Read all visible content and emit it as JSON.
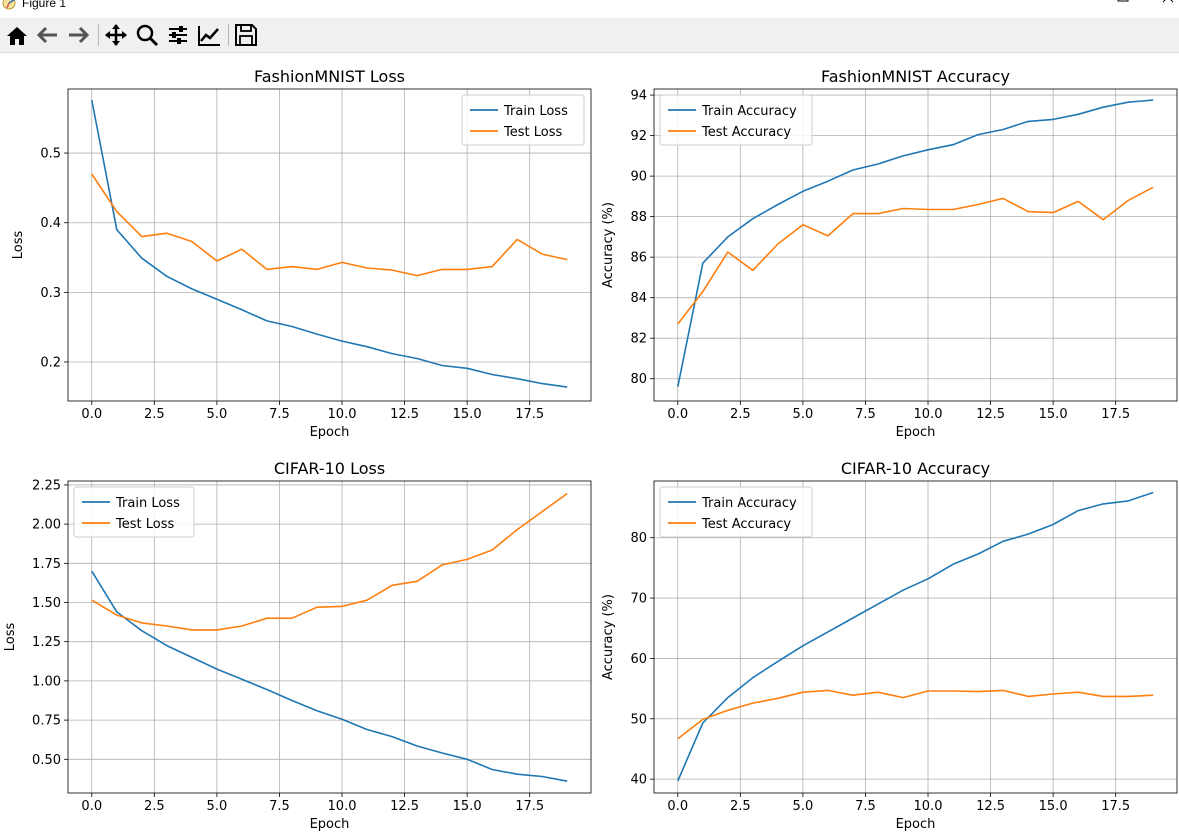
{
  "window": {
    "title": "Figure 1",
    "icons": [
      "matplotlib-icon",
      "minimize-icon",
      "maximize-icon",
      "close-icon"
    ]
  },
  "toolbar": {
    "buttons": [
      "home-icon",
      "back-arrow-icon",
      "forward-arrow-icon",
      "pan-move-icon",
      "zoom-magnifier-icon",
      "subplots-configure-icon",
      "edit-axes-icon",
      "save-floppy-icon"
    ]
  },
  "colors": {
    "train": "#1f77b4",
    "test": "#ff7f0e",
    "grid": "#b0b0b0"
  },
  "chart_data": [
    {
      "type": "line",
      "title": "FashionMNIST Loss",
      "xlabel": "Epoch",
      "ylabel": "Loss",
      "xlim": [
        -0.95,
        19.95
      ],
      "ylim": [
        0.144,
        0.592
      ],
      "xticks": [
        0,
        2.5,
        5,
        7.5,
        10,
        12.5,
        15,
        17.5
      ],
      "xtick_labels": [
        "0.0",
        "2.5",
        "5.0",
        "7.5",
        "10.0",
        "12.5",
        "15.0",
        "17.5"
      ],
      "yticks": [
        0.2,
        0.3,
        0.4,
        0.5
      ],
      "ytick_labels": [
        "0.2",
        "0.3",
        "0.4",
        "0.5"
      ],
      "grid": true,
      "legend": "upper right",
      "x": [
        0,
        1,
        2,
        3,
        4,
        5,
        6,
        7,
        8,
        9,
        10,
        11,
        12,
        13,
        14,
        15,
        16,
        17,
        18,
        19
      ],
      "series": [
        {
          "name": "Train Loss",
          "color": "#1f77b4",
          "values": [
            0.576,
            0.39,
            0.349,
            0.323,
            0.305,
            0.29,
            0.275,
            0.259,
            0.251,
            0.24,
            0.23,
            0.222,
            0.212,
            0.205,
            0.195,
            0.191,
            0.182,
            0.176,
            0.169,
            0.164
          ]
        },
        {
          "name": "Test Loss",
          "color": "#ff7f0e",
          "values": [
            0.47,
            0.416,
            0.38,
            0.385,
            0.373,
            0.345,
            0.362,
            0.333,
            0.337,
            0.333,
            0.343,
            0.335,
            0.332,
            0.324,
            0.333,
            0.333,
            0.337,
            0.376,
            0.355,
            0.347
          ]
        }
      ]
    },
    {
      "type": "line",
      "title": "FashionMNIST Accuracy",
      "xlabel": "Epoch",
      "ylabel": "Accuracy (%)",
      "xlim": [
        -0.95,
        19.95
      ],
      "ylim": [
        78.9,
        94.3
      ],
      "xticks": [
        0,
        2.5,
        5,
        7.5,
        10,
        12.5,
        15,
        17.5
      ],
      "xtick_labels": [
        "0.0",
        "2.5",
        "5.0",
        "7.5",
        "10.0",
        "12.5",
        "15.0",
        "17.5"
      ],
      "yticks": [
        80,
        82,
        84,
        86,
        88,
        90,
        92,
        94
      ],
      "ytick_labels": [
        "80",
        "82",
        "84",
        "86",
        "88",
        "90",
        "92",
        "94"
      ],
      "grid": true,
      "legend": "upper left",
      "x": [
        0,
        1,
        2,
        3,
        4,
        5,
        6,
        7,
        8,
        9,
        10,
        11,
        12,
        13,
        14,
        15,
        16,
        17,
        18,
        19
      ],
      "series": [
        {
          "name": "Train Accuracy",
          "color": "#1f77b4",
          "values": [
            79.6,
            85.7,
            87.0,
            87.9,
            88.6,
            89.25,
            89.75,
            90.3,
            90.6,
            91.0,
            91.3,
            91.55,
            92.05,
            92.3,
            92.7,
            92.8,
            93.05,
            93.4,
            93.65,
            93.75
          ]
        },
        {
          "name": "Test Accuracy",
          "color": "#ff7f0e",
          "values": [
            82.7,
            84.3,
            86.25,
            85.35,
            86.65,
            87.6,
            87.05,
            88.15,
            88.15,
            88.4,
            88.35,
            88.35,
            88.6,
            88.9,
            88.25,
            88.2,
            88.75,
            87.85,
            88.8,
            89.45
          ]
        }
      ]
    },
    {
      "type": "line",
      "title": "CIFAR-10 Loss",
      "xlabel": "Epoch",
      "ylabel": "Loss",
      "xlim": [
        -0.95,
        19.95
      ],
      "ylim": [
        0.285,
        2.275
      ],
      "xticks": [
        0,
        2.5,
        5,
        7.5,
        10,
        12.5,
        15,
        17.5
      ],
      "xtick_labels": [
        "0.0",
        "2.5",
        "5.0",
        "7.5",
        "10.0",
        "12.5",
        "15.0",
        "17.5"
      ],
      "yticks": [
        0.5,
        0.75,
        1.0,
        1.25,
        1.5,
        1.75,
        2.0,
        2.25
      ],
      "ytick_labels": [
        "0.50",
        "0.75",
        "1.00",
        "1.25",
        "1.50",
        "1.75",
        "2.00",
        "2.25"
      ],
      "grid": true,
      "legend": "upper left",
      "x": [
        0,
        1,
        2,
        3,
        4,
        5,
        6,
        7,
        8,
        9,
        10,
        11,
        12,
        13,
        14,
        15,
        16,
        17,
        18,
        19
      ],
      "series": [
        {
          "name": "Train Loss",
          "color": "#1f77b4",
          "values": [
            1.7,
            1.44,
            1.32,
            1.225,
            1.15,
            1.075,
            1.01,
            0.945,
            0.875,
            0.81,
            0.755,
            0.69,
            0.645,
            0.585,
            0.54,
            0.5,
            0.435,
            0.405,
            0.39,
            0.36
          ]
        },
        {
          "name": "Test Loss",
          "color": "#ff7f0e",
          "values": [
            1.515,
            1.42,
            1.37,
            1.35,
            1.325,
            1.325,
            1.35,
            1.4,
            1.4,
            1.47,
            1.475,
            1.515,
            1.61,
            1.635,
            1.74,
            1.775,
            1.835,
            1.965,
            2.08,
            2.195
          ]
        }
      ]
    },
    {
      "type": "line",
      "title": "CIFAR-10 Accuracy",
      "xlabel": "Epoch",
      "ylabel": "Accuracy (%)",
      "xlim": [
        -0.95,
        19.95
      ],
      "ylim": [
        37.7,
        89.4
      ],
      "xticks": [
        0,
        2.5,
        5,
        7.5,
        10,
        12.5,
        15,
        17.5
      ],
      "xtick_labels": [
        "0.0",
        "2.5",
        "5.0",
        "7.5",
        "10.0",
        "12.5",
        "15.0",
        "17.5"
      ],
      "yticks": [
        40,
        50,
        60,
        70,
        80
      ],
      "ytick_labels": [
        "40",
        "50",
        "60",
        "70",
        "80"
      ],
      "grid": true,
      "legend": "upper left",
      "x": [
        0,
        1,
        2,
        3,
        4,
        5,
        6,
        7,
        8,
        9,
        10,
        11,
        12,
        13,
        14,
        15,
        16,
        17,
        18,
        19
      ],
      "series": [
        {
          "name": "Train Accuracy",
          "color": "#1f77b4",
          "values": [
            39.7,
            49.3,
            53.5,
            56.8,
            59.5,
            62.1,
            64.4,
            66.7,
            69.0,
            71.3,
            73.2,
            75.6,
            77.3,
            79.4,
            80.6,
            82.2,
            84.5,
            85.6,
            86.1,
            87.5
          ]
        },
        {
          "name": "Test Accuracy",
          "color": "#ff7f0e",
          "values": [
            46.7,
            49.9,
            51.4,
            52.6,
            53.4,
            54.4,
            54.7,
            53.9,
            54.4,
            53.5,
            54.6,
            54.6,
            54.5,
            54.7,
            53.7,
            54.1,
            54.4,
            53.7,
            53.7,
            53.9
          ]
        }
      ]
    }
  ]
}
